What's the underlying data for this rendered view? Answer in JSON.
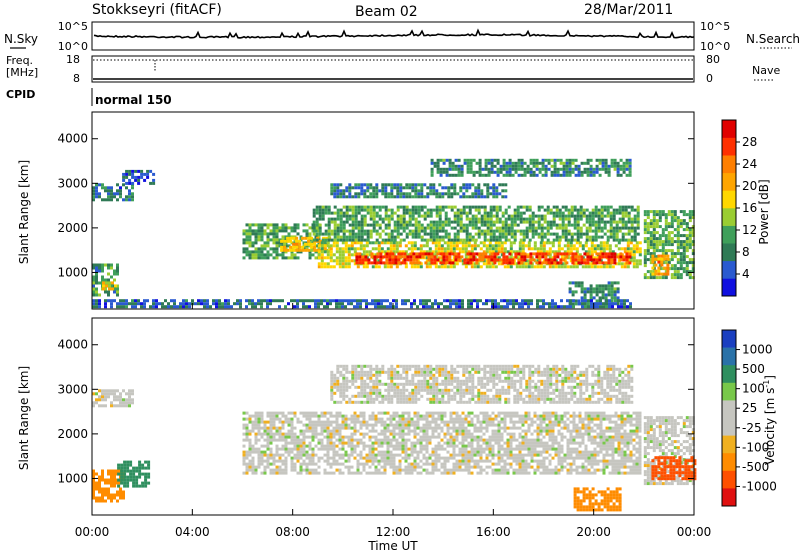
{
  "header": {
    "title": "Stokkseyri (fitACF)",
    "beam": "Beam 02",
    "date": "28/Mar/2011"
  },
  "top_panels": {
    "nsky_label": "N.Sky",
    "nsearch_label": "N.Search",
    "freq_label": "Freq.",
    "freq_unit": "[MHz]",
    "nave_label": "Nave",
    "cpid_label": "CPID",
    "cpid_value": "normal 150",
    "noise_ticks": [
      "10^5",
      "10^0"
    ],
    "freq_ticks": [
      "18",
      "8"
    ],
    "nave_ticks": [
      "80",
      "0"
    ]
  },
  "colors": {
    "power_scale": [
      "#1010e0",
      "#2a5ad0",
      "#2f7a55",
      "#3f9f5a",
      "#9acd32",
      "#ffd700",
      "#ffa500",
      "#ff7f00",
      "#ff3000",
      "#e00000"
    ],
    "velocity_scale": [
      "#1a3fc0",
      "#2a72a8",
      "#2f8f5f",
      "#78c84a",
      "#c6c6c0",
      "#c6c6c0",
      "#f0b020",
      "#ff8c00",
      "#ff5000",
      "#e01010"
    ],
    "ground_scatter": "#c6c6c0"
  },
  "chart_data": [
    {
      "type": "heatmap",
      "panel": "power",
      "ylabel": "Slant Range [km]",
      "xlabel": "",
      "xlim_hours": [
        0,
        24
      ],
      "ylim": [
        180,
        4600
      ],
      "yticks": [
        "1000",
        "2000",
        "3000",
        "4000"
      ],
      "colorbar_label": "Power [dB]",
      "colorbar_ticks": [
        "4",
        "8",
        "12",
        "16",
        "20",
        "24",
        "28"
      ],
      "colorbar_range": [
        0,
        32
      ],
      "regions": [
        {
          "t0": 0.0,
          "t1": 1.6,
          "r0": 2650,
          "r1": 3000,
          "v": 7
        },
        {
          "t0": 1.2,
          "t1": 2.4,
          "r0": 3000,
          "r1": 3300,
          "v": 5
        },
        {
          "t0": 0.0,
          "t1": 1.0,
          "r0": 500,
          "r1": 1200,
          "v": 10
        },
        {
          "t0": 0.4,
          "t1": 0.9,
          "r0": 600,
          "r1": 800,
          "v": 18
        },
        {
          "t0": 6.0,
          "t1": 9.0,
          "r0": 1300,
          "r1": 2100,
          "v": 11
        },
        {
          "t0": 7.5,
          "t1": 9.5,
          "r0": 1500,
          "r1": 1800,
          "v": 19
        },
        {
          "t0": 9.0,
          "t1": 21.8,
          "r0": 1100,
          "r1": 1700,
          "v": 16
        },
        {
          "t0": 10.5,
          "t1": 21.5,
          "r0": 1200,
          "r1": 1450,
          "v": 27
        },
        {
          "t0": 8.8,
          "t1": 21.8,
          "r0": 1700,
          "r1": 2500,
          "v": 11
        },
        {
          "t0": 9.5,
          "t1": 16.5,
          "r0": 2700,
          "r1": 3000,
          "v": 8
        },
        {
          "t0": 13.5,
          "t1": 21.5,
          "r0": 3200,
          "r1": 3550,
          "v": 9
        },
        {
          "t0": 22.0,
          "t1": 24.0,
          "r0": 900,
          "r1": 2400,
          "v": 12
        },
        {
          "t0": 22.3,
          "t1": 23.0,
          "r0": 950,
          "r1": 1400,
          "v": 22
        },
        {
          "t0": 19.0,
          "t1": 21.0,
          "r0": 300,
          "r1": 800,
          "v": 9
        },
        {
          "t0": 0.0,
          "t1": 21.5,
          "r0": 200,
          "r1": 400,
          "v": 6
        }
      ]
    },
    {
      "type": "heatmap",
      "panel": "velocity",
      "ylabel": "Slant Range [km]",
      "xlabel": "Time UT",
      "xlim_hours": [
        0,
        24
      ],
      "ylim": [
        180,
        4600
      ],
      "yticks": [
        "1000",
        "2000",
        "3000",
        "4000"
      ],
      "xticks": [
        "00:00",
        "04:00",
        "08:00",
        "12:00",
        "16:00",
        "20:00",
        "00:00"
      ],
      "colorbar_label": "Velocity [m s",
      "colorbar_label_sup": "-1",
      "colorbar_ticks": [
        "1000",
        "500",
        "100",
        "25",
        "-25",
        "-100",
        "-500",
        "-1000"
      ],
      "regions": [
        {
          "t0": 0.0,
          "t1": 1.6,
          "r0": 2650,
          "r1": 3000,
          "v": 0
        },
        {
          "t0": 0.0,
          "t1": 1.2,
          "r0": 500,
          "r1": 1200,
          "v": -300
        },
        {
          "t0": 1.0,
          "t1": 2.2,
          "r0": 800,
          "r1": 1400,
          "v": 150
        },
        {
          "t0": 6.0,
          "t1": 21.8,
          "r0": 1100,
          "r1": 2500,
          "v": 0
        },
        {
          "t0": 9.5,
          "t1": 21.5,
          "r0": 2700,
          "r1": 3550,
          "v": 0
        },
        {
          "t0": 22.0,
          "t1": 24.0,
          "r0": 900,
          "r1": 2400,
          "v": 0
        },
        {
          "t0": 22.3,
          "t1": 24.0,
          "r0": 1000,
          "r1": 1500,
          "v": -600
        },
        {
          "t0": 19.2,
          "t1": 21.0,
          "r0": 300,
          "r1": 800,
          "v": -400
        }
      ]
    }
  ]
}
